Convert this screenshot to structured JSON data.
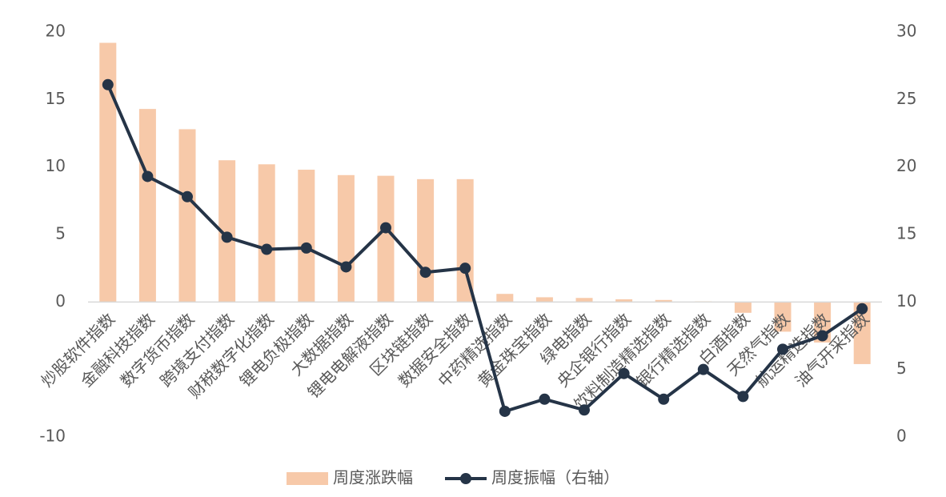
{
  "chart_data": {
    "type": "bar-line",
    "categories": [
      "炒股软件指数",
      "金融科技指数",
      "数字货币指数",
      "跨境支付指数",
      "财税数字化指数",
      "锂电负极指数",
      "大数据指数",
      "锂电电解液指数",
      "区块链指数",
      "数据安全指数",
      "中药精选指数",
      "黄金珠宝指数",
      "绿电指数",
      "央企银行指数",
      "饮料制造精选指数",
      "银行精选指数",
      "白酒指数",
      "天然气指数",
      "航运精选指数",
      "油气开采指数"
    ],
    "series": [
      {
        "name": "周度涨跌幅",
        "type": "bar",
        "color": "#f7c9a9",
        "values": [
          19.2,
          14.3,
          12.8,
          10.5,
          10.2,
          9.8,
          9.4,
          9.35,
          9.1,
          9.1,
          0.6,
          0.35,
          0.3,
          0.2,
          0.15,
          0.05,
          -0.8,
          -2.2,
          -3.0,
          -4.6
        ]
      },
      {
        "name": "周度振幅（右轴）",
        "type": "line",
        "axis": "y2",
        "color": "#253447",
        "values": [
          26.1,
          19.3,
          17.8,
          14.8,
          13.9,
          14.0,
          12.6,
          15.5,
          12.2,
          12.5,
          1.9,
          2.8,
          2.0,
          4.7,
          2.8,
          5.0,
          3.0,
          6.5,
          7.5,
          9.5
        ]
      }
    ],
    "ylim": [
      -10,
      20
    ],
    "yticks": [
      -10,
      0,
      5,
      10,
      15,
      20
    ],
    "y2lim": [
      0,
      30
    ],
    "y2ticks": [
      0,
      5,
      10,
      15,
      20,
      25,
      30
    ],
    "legend": "bottom",
    "grid": false
  }
}
